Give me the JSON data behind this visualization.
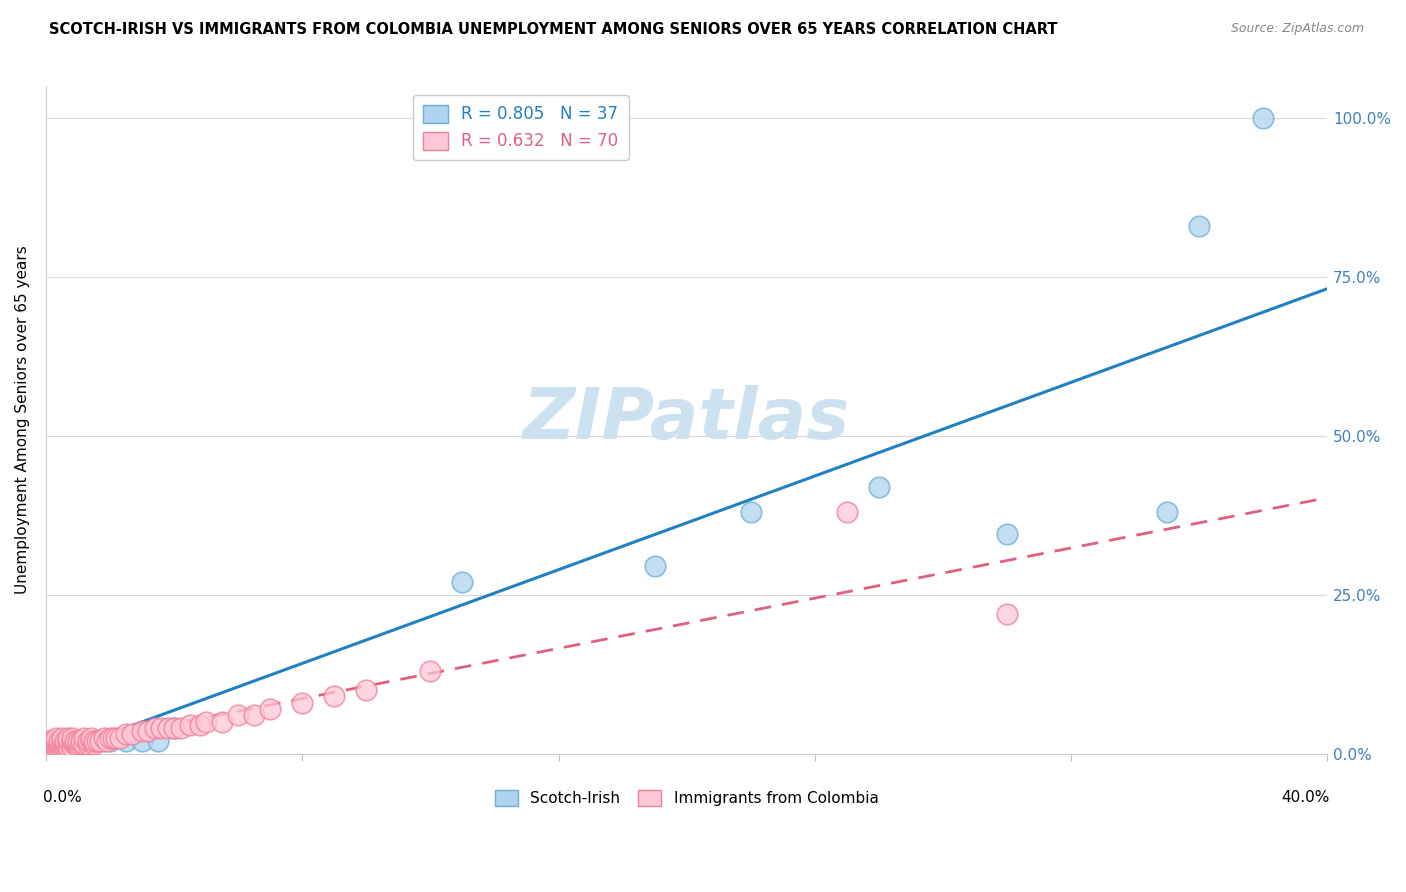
{
  "title": "SCOTCH-IRISH VS IMMIGRANTS FROM COLOMBIA UNEMPLOYMENT AMONG SENIORS OVER 65 YEARS CORRELATION CHART",
  "source": "Source: ZipAtlas.com",
  "ylabel": "Unemployment Among Seniors over 65 years",
  "legend_scotch_irish": "Scotch-Irish",
  "legend_colombia": "Immigrants from Colombia",
  "R_scotch": 0.805,
  "N_scotch": 37,
  "R_colombia": 0.632,
  "N_colombia": 70,
  "scotch_fill_color": "#aed4f0",
  "scotch_edge_color": "#6aaed6",
  "colombia_fill_color": "#ffc8d8",
  "colombia_edge_color": "#f08098",
  "scotch_line_color": "#2080c0",
  "colombia_line_color": "#e06080",
  "watermark_color": "#c8dff0",
  "right_tick_color": "#4080c0",
  "scotch_x": [
    0.001,
    0.002,
    0.002,
    0.003,
    0.003,
    0.004,
    0.004,
    0.005,
    0.005,
    0.006,
    0.006,
    0.007,
    0.007,
    0.008,
    0.008,
    0.009,
    0.01,
    0.011,
    0.012,
    0.013,
    0.014,
    0.015,
    0.016,
    0.018,
    0.02,
    0.025,
    0.03,
    0.035,
    0.04,
    0.13,
    0.19,
    0.22,
    0.26,
    0.3,
    0.35,
    0.36,
    0.38
  ],
  "scotch_y": [
    0.01,
    0.01,
    0.02,
    0.02,
    0.015,
    0.015,
    0.02,
    0.01,
    0.02,
    0.015,
    0.02,
    0.02,
    0.015,
    0.02,
    0.015,
    0.02,
    0.015,
    0.02,
    0.015,
    0.02,
    0.02,
    0.02,
    0.02,
    0.02,
    0.02,
    0.02,
    0.02,
    0.02,
    0.04,
    0.27,
    0.295,
    0.38,
    0.42,
    0.345,
    0.38,
    0.83,
    1.0
  ],
  "colombia_x": [
    0.001,
    0.001,
    0.002,
    0.002,
    0.002,
    0.003,
    0.003,
    0.003,
    0.003,
    0.004,
    0.004,
    0.004,
    0.005,
    0.005,
    0.005,
    0.005,
    0.006,
    0.006,
    0.006,
    0.007,
    0.007,
    0.007,
    0.008,
    0.008,
    0.008,
    0.009,
    0.009,
    0.01,
    0.01,
    0.01,
    0.011,
    0.011,
    0.012,
    0.012,
    0.013,
    0.013,
    0.014,
    0.014,
    0.015,
    0.015,
    0.016,
    0.017,
    0.018,
    0.019,
    0.02,
    0.021,
    0.022,
    0.023,
    0.025,
    0.027,
    0.03,
    0.032,
    0.034,
    0.036,
    0.038,
    0.04,
    0.042,
    0.045,
    0.048,
    0.05,
    0.055,
    0.06,
    0.065,
    0.07,
    0.08,
    0.09,
    0.1,
    0.12,
    0.25,
    0.3
  ],
  "colombia_y": [
    0.01,
    0.02,
    0.01,
    0.015,
    0.02,
    0.01,
    0.015,
    0.02,
    0.025,
    0.01,
    0.015,
    0.02,
    0.01,
    0.015,
    0.02,
    0.025,
    0.01,
    0.015,
    0.02,
    0.01,
    0.02,
    0.025,
    0.01,
    0.02,
    0.025,
    0.015,
    0.02,
    0.01,
    0.015,
    0.02,
    0.015,
    0.02,
    0.015,
    0.025,
    0.015,
    0.02,
    0.02,
    0.025,
    0.015,
    0.02,
    0.02,
    0.02,
    0.025,
    0.02,
    0.025,
    0.025,
    0.025,
    0.025,
    0.03,
    0.03,
    0.035,
    0.035,
    0.04,
    0.04,
    0.04,
    0.04,
    0.04,
    0.045,
    0.045,
    0.05,
    0.05,
    0.06,
    0.06,
    0.07,
    0.08,
    0.09,
    0.1,
    0.13,
    0.38,
    0.22
  ],
  "xlim": [
    0.0,
    0.4
  ],
  "ylim": [
    0.0,
    1.05
  ],
  "yticks": [
    0.0,
    0.25,
    0.5,
    0.75,
    1.0
  ],
  "ytick_labels": [
    "0.0%",
    "25.0%",
    "50.0%",
    "75.0%",
    "100.0%"
  ],
  "xticks": [
    0.0,
    0.08,
    0.16,
    0.24,
    0.32,
    0.4
  ]
}
